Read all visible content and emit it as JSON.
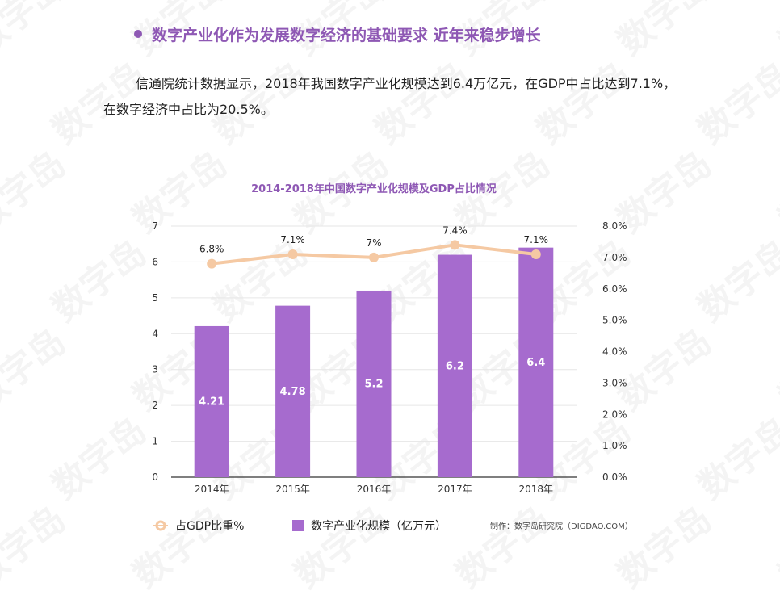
{
  "heading": {
    "text": "数字产业化作为发展数字经济的基础要求 近年来稳步增长"
  },
  "paragraph": {
    "text": "信通院统计数据显示，2018年我国数字产业化规模达到6.4万亿元，在GDP中占比达到7.1%，在数字经济中占比为20.5%。"
  },
  "watermark": {
    "text": "数字岛"
  },
  "credit": {
    "text": "制作：数字岛研究院（DIGDAO.COM）"
  },
  "colors": {
    "bar": "#a66bce",
    "line": "#f5c9a3",
    "title": "#8e58b4"
  },
  "chart_data": {
    "type": "bar",
    "title": "2014-2018年中国数字产业化规模及GDP占比情况",
    "categories": [
      "2014年",
      "2015年",
      "2016年",
      "2017年",
      "2018年"
    ],
    "series": [
      {
        "name": "数字产业化规模（亿万元）",
        "type": "bar",
        "axis": "left",
        "values": [
          4.21,
          4.78,
          5.2,
          6.2,
          6.4
        ],
        "labels": [
          "4.21",
          "4.78",
          "5.2",
          "6.2",
          "6.4"
        ]
      },
      {
        "name": "占GDP比重%",
        "type": "line",
        "axis": "right",
        "values": [
          6.8,
          7.1,
          7.0,
          7.4,
          7.1
        ],
        "labels": [
          "6.8%",
          "7.1%",
          "7%",
          "7.4%",
          "7.1%"
        ]
      }
    ],
    "y_left": {
      "ylim": [
        0,
        7
      ],
      "ticks": [
        "0",
        "1",
        "2",
        "3",
        "4",
        "5",
        "6",
        "7"
      ]
    },
    "y_right": {
      "ylim": [
        0,
        8
      ],
      "ticks": [
        "0.0%",
        "1.0%",
        "2.0%",
        "3.0%",
        "4.0%",
        "5.0%",
        "6.0%",
        "7.0%",
        "8.0%"
      ]
    },
    "grid": true,
    "legend": "bottom-left"
  }
}
